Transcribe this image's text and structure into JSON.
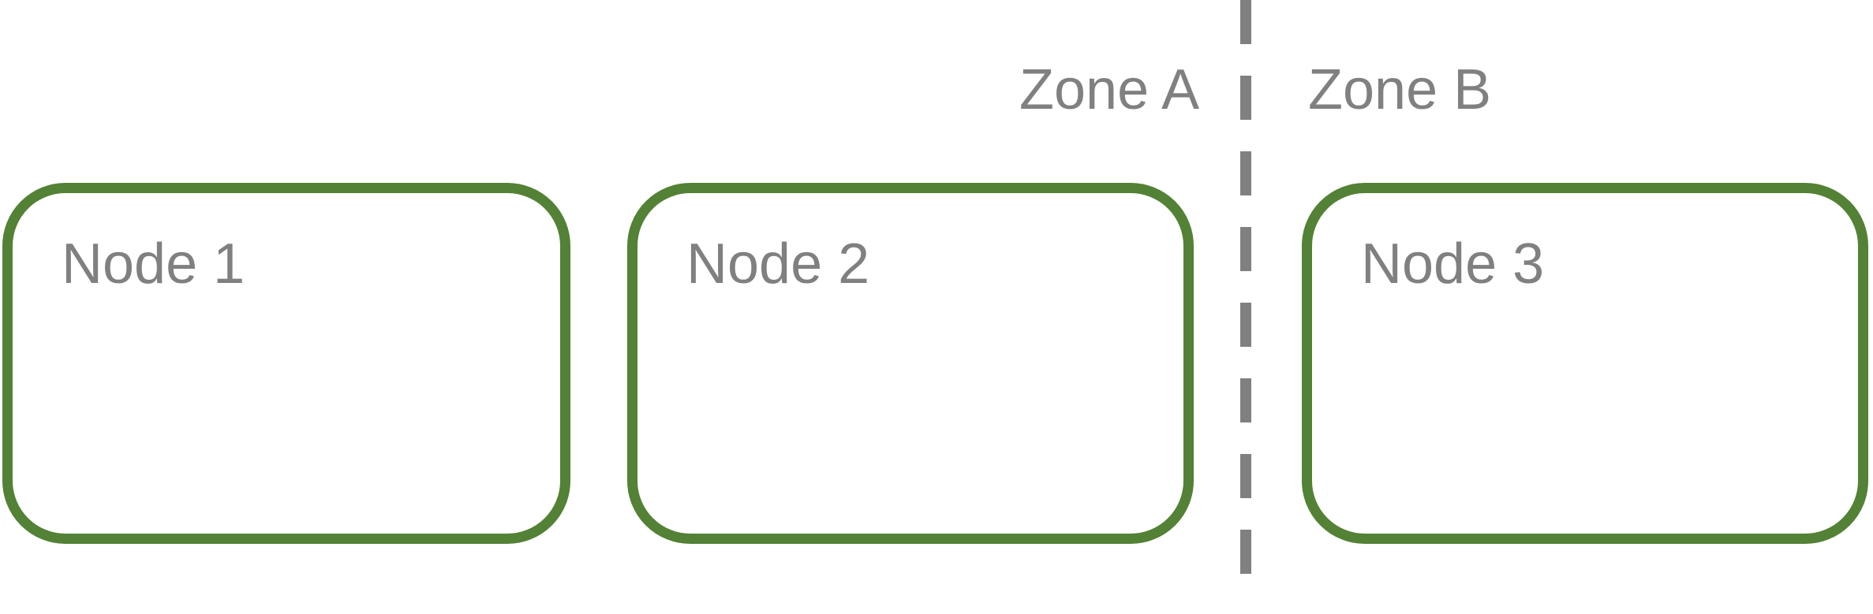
{
  "zones": [
    {
      "label": "Zone A"
    },
    {
      "label": "Zone B"
    }
  ],
  "nodes": [
    {
      "label": "Node 1"
    },
    {
      "label": "Node 2"
    },
    {
      "label": "Node 3"
    }
  ],
  "colors": {
    "node_border": "#538135",
    "text": "#808080",
    "divider": "#808080"
  }
}
